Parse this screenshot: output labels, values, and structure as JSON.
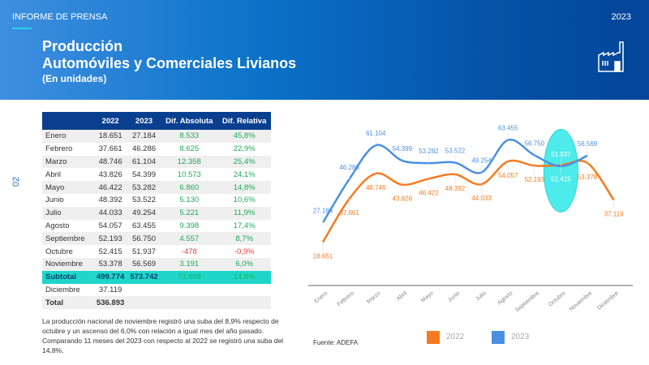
{
  "header": {
    "kicker": "INFORME DE PRENSA",
    "year": "2023",
    "title1": "Producción",
    "title2": "Automóviles y Comerciales Livianos",
    "subtitle": "(En unidades)",
    "icon": "factory-icon"
  },
  "page_number": "02",
  "table": {
    "headers": [
      "",
      "2022",
      "2023",
      "Dif. Absoluta",
      "Dif. Relativa"
    ],
    "rows": [
      [
        "Enero",
        "18.651",
        "27.184",
        "8.533",
        "45,8%"
      ],
      [
        "Febrero",
        "37.661",
        "46.286",
        "8.625",
        "22,9%"
      ],
      [
        "Marzo",
        "48.746",
        "61.104",
        "12.358",
        "25,4%"
      ],
      [
        "Abril",
        "43.826",
        "54.399",
        "10.573",
        "24,1%"
      ],
      [
        "Mayo",
        "46.422",
        "53.282",
        "6.860",
        "14,8%"
      ],
      [
        "Junio",
        "48.392",
        "53.522",
        "5.130",
        "10,6%"
      ],
      [
        "Julio",
        "44.033",
        "49.254",
        "5.221",
        "11,9%"
      ],
      [
        "Agosto",
        "54.057",
        "63.455",
        "9.398",
        "17,4%"
      ],
      [
        "Septiembre",
        "52.193",
        "56.750",
        "4.557",
        "8,7%"
      ],
      [
        "Octubre",
        "52.415",
        "51.937",
        "-478",
        "-0,9%"
      ],
      [
        "Noviembre",
        "53.378",
        "56.569",
        "3.191",
        "6,0%"
      ]
    ],
    "subtotal": [
      "Subtotal",
      "499.774",
      "573.742",
      "73.968",
      "14,8%"
    ],
    "diciembre": [
      "Diciembre",
      "37.119"
    ],
    "total": [
      "Total",
      "536.893"
    ]
  },
  "note": "La producción nacional de noviembre registró una suba del 8,9% respecto de octubre y un ascenso del 6,0% con relación a igual mes del año pasado. Comparando 11 meses del 2023 con respecto al 2022 se registró una suba del 14,8%.",
  "source": "Fuente: ADEFA",
  "chart_data": {
    "type": "line",
    "categories": [
      "Enero",
      "Febrero",
      "Marzo",
      "Abril",
      "Mayo",
      "Junio",
      "Julio",
      "Agosto",
      "Septiembre",
      "Octubre",
      "Noviembre",
      "Diciembre"
    ],
    "series": [
      {
        "name": "2022",
        "color": "#f47b20",
        "values": [
          18651,
          37661,
          48746,
          43826,
          46422,
          48392,
          44033,
          54057,
          52193,
          52415,
          53378,
          37119
        ],
        "labels": [
          "18.651",
          "37.661",
          "48.746",
          "43.826",
          "46.422",
          "48.392",
          "44.033",
          "54.057",
          "52.193",
          "52.415",
          "53.378",
          "37.119"
        ]
      },
      {
        "name": "2023",
        "color": "#4a90e2",
        "values": [
          27184,
          46286,
          61104,
          54399,
          53282,
          53522,
          49254,
          63455,
          56750,
          51937,
          56569,
          null
        ],
        "labels": [
          "27.184",
          "46.286",
          "61.104",
          "54.399",
          "53.282",
          "53.522",
          "49.254",
          "63.455",
          "56.750",
          "51.937",
          "56.569",
          ""
        ]
      }
    ],
    "ylim": [
      0,
      65000
    ],
    "grid": false,
    "legend": "bottom",
    "highlight": "Octubre",
    "highlight_color": "#2ee8e8"
  }
}
